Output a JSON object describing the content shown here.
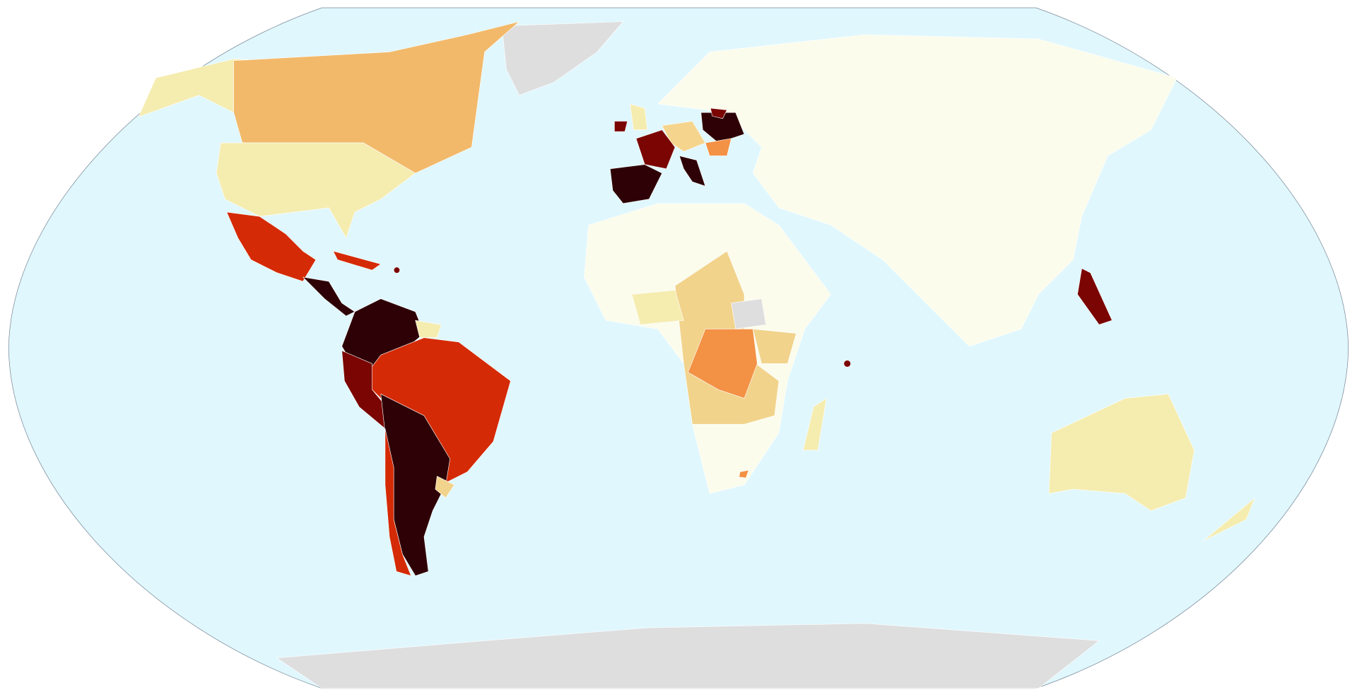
{
  "map": {
    "ocean": "#e0f7fd",
    "outline": "#7a8a99",
    "border": "#ffffff",
    "regions": [
      {
        "color": "#fbfcec"
      },
      {
        "color": "#fbfcec"
      },
      {
        "color": "#dedede"
      },
      {
        "color": "#f5ecb0"
      },
      {
        "color": "#f2b96b"
      },
      {
        "color": "#f5ecb0"
      },
      {
        "color": "#d42a05"
      },
      {
        "color": "#2e0106"
      },
      {
        "color": "#d42a05"
      },
      {
        "color": "#2e0106"
      },
      {
        "color": "#f5ecb0"
      },
      {
        "color": "#d42a05"
      },
      {
        "color": "#7a0502"
      },
      {
        "color": "#2e0106"
      },
      {
        "color": "#d42a05"
      },
      {
        "color": "#f1d38b"
      },
      {
        "color": "#f5d58e"
      },
      {
        "color": "#2e0106"
      },
      {
        "color": "#7a0502"
      },
      {
        "color": "#2e0106"
      },
      {
        "color": "#f1d38b"
      },
      {
        "color": "#2e0106"
      },
      {
        "color": "#f39145"
      },
      {
        "color": "#7a0502"
      },
      {
        "color": "#f5ecb0"
      },
      {
        "color": "#f5ecb0"
      },
      {
        "color": "#f39145"
      },
      {
        "color": "#f1d38b"
      },
      {
        "color": "#dedede"
      },
      {
        "color": "#f5ecb0"
      },
      {
        "color": "#7a0502"
      },
      {
        "color": "#f5ecb0"
      },
      {
        "color": "#f5ecb0"
      },
      {
        "color": "#dedede"
      },
      {
        "color": "#7a0502"
      },
      {
        "color": "#7a0502"
      },
      {
        "color": "#7a0502"
      },
      {
        "color": "#f39145"
      }
    ]
  }
}
